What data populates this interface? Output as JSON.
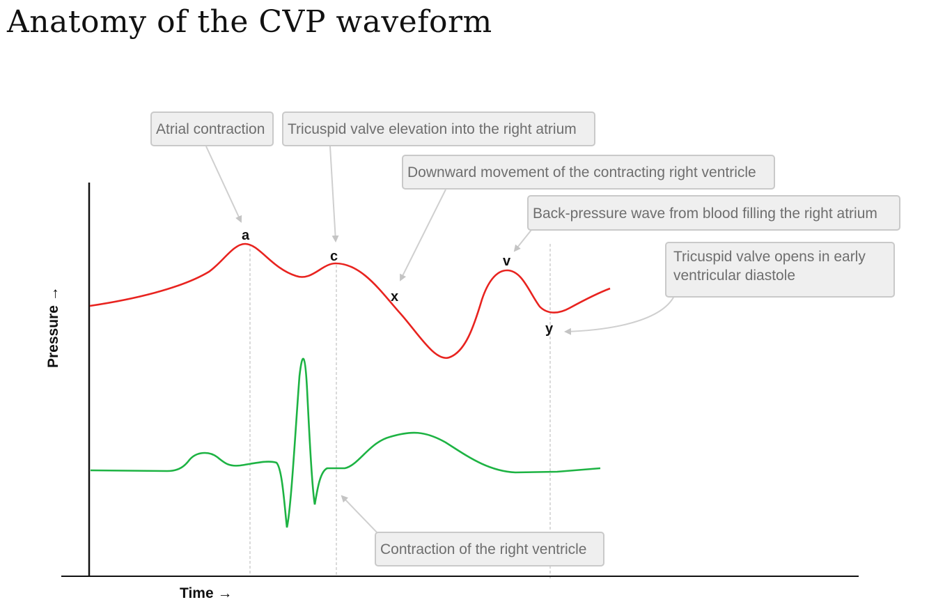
{
  "title": "Anatomy of the CVP waveform",
  "axes": {
    "x_label": "Time →",
    "y_label": "Pressure →"
  },
  "wave_labels": {
    "a": "a",
    "c": "c",
    "x": "x",
    "v": "v",
    "y": "y"
  },
  "callouts": {
    "atrial_contraction": "Atrial contraction",
    "tricuspid_elevation": "Tricuspid valve elevation into the right atrium",
    "downward_movement": "Downward movement of the contracting right ventricle",
    "back_pressure": "Back-pressure wave from blood filling the right atrium",
    "tricuspid_opens": "Tricuspid valve opens in early ventricular diastole",
    "ventricle_contraction": "Contraction of the right ventricle"
  },
  "colors": {
    "cvp_trace": "#e8231f",
    "ecg_trace": "#1db343",
    "axis": "#111111",
    "callout_text": "#6e6e6e",
    "callout_bg": "#efefef",
    "callout_border": "#c9c9c9",
    "pointer": "#cfcfcf",
    "guide_line": "#b5b5b5"
  }
}
